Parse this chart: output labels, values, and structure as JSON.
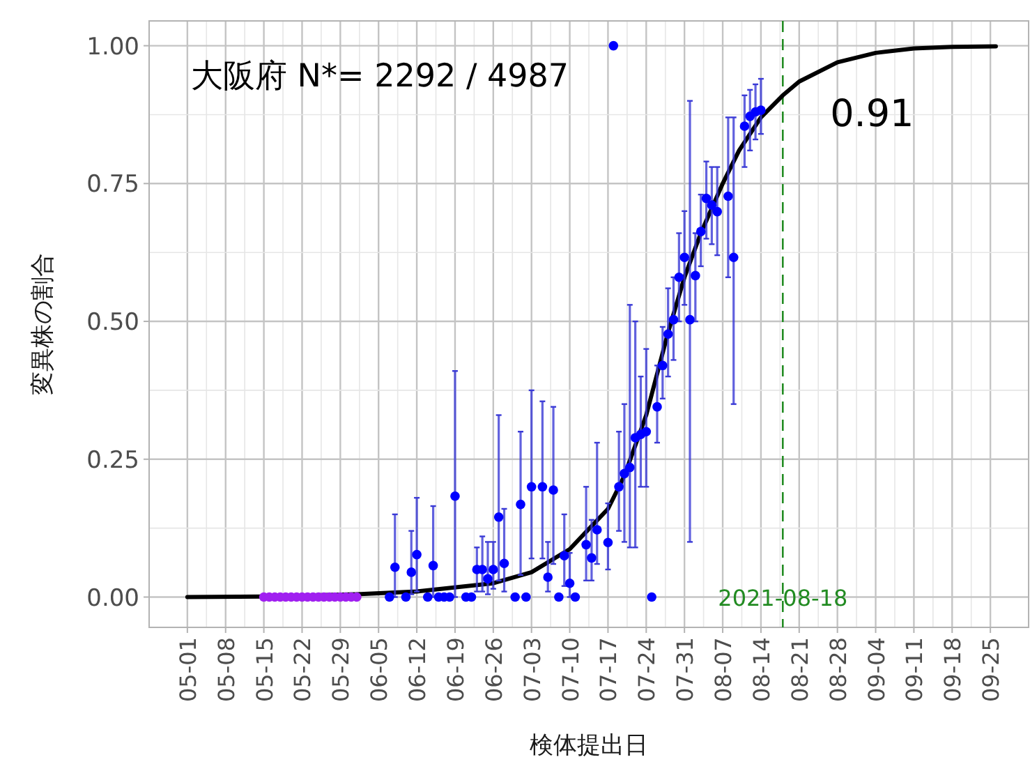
{
  "chart_data": {
    "type": "scatter",
    "xlabel": "検体提出日",
    "ylabel": "変異株の割合",
    "xlim": [
      "2021-04-24",
      "2021-10-02"
    ],
    "ylim": [
      -0.055,
      1.045
    ],
    "xticks": [
      {
        "value": "2021-05-01",
        "label": "05-01"
      },
      {
        "value": "2021-05-08",
        "label": "05-08"
      },
      {
        "value": "2021-05-15",
        "label": "05-15"
      },
      {
        "value": "2021-05-22",
        "label": "05-22"
      },
      {
        "value": "2021-05-29",
        "label": "05-29"
      },
      {
        "value": "2021-06-05",
        "label": "06-05"
      },
      {
        "value": "2021-06-12",
        "label": "06-12"
      },
      {
        "value": "2021-06-19",
        "label": "06-19"
      },
      {
        "value": "2021-06-26",
        "label": "06-26"
      },
      {
        "value": "2021-07-03",
        "label": "07-03"
      },
      {
        "value": "2021-07-10",
        "label": "07-10"
      },
      {
        "value": "2021-07-17",
        "label": "07-17"
      },
      {
        "value": "2021-07-24",
        "label": "07-24"
      },
      {
        "value": "2021-07-31",
        "label": "07-31"
      },
      {
        "value": "2021-08-07",
        "label": "08-07"
      },
      {
        "value": "2021-08-14",
        "label": "08-14"
      },
      {
        "value": "2021-08-21",
        "label": "08-21"
      },
      {
        "value": "2021-08-28",
        "label": "08-28"
      },
      {
        "value": "2021-09-04",
        "label": "09-04"
      },
      {
        "value": "2021-09-11",
        "label": "09-11"
      },
      {
        "value": "2021-09-18",
        "label": "09-18"
      },
      {
        "value": "2021-09-25",
        "label": "09-25"
      }
    ],
    "yticks": [
      {
        "value": 0,
        "label": "0.00"
      },
      {
        "value": 0.25,
        "label": "0.25"
      },
      {
        "value": 0.5,
        "label": "0.50"
      },
      {
        "value": 0.75,
        "label": "0.75"
      },
      {
        "value": 1,
        "label": "1.00"
      }
    ],
    "grid": true,
    "series": [
      {
        "type": "line",
        "color": "#000000",
        "line_style": "solid",
        "x": [
          "2021-05-01",
          "2021-05-15",
          "2021-06-01",
          "2021-06-12",
          "2021-06-26",
          "2021-07-03",
          "2021-07-10",
          "2021-07-17",
          "2021-07-20",
          "2021-07-24",
          "2021-07-28",
          "2021-07-31",
          "2021-08-03",
          "2021-08-07",
          "2021-08-10",
          "2021-08-14",
          "2021-08-18",
          "2021-08-21",
          "2021-08-28",
          "2021-09-04",
          "2021-09-11",
          "2021-09-18",
          "2021-09-26"
        ],
        "values": [
          0,
          0.001,
          0.005,
          0.01,
          0.025,
          0.045,
          0.087,
          0.16,
          0.22,
          0.33,
          0.48,
          0.58,
          0.66,
          0.75,
          0.81,
          0.87,
          0.91,
          0.935,
          0.97,
          0.987,
          0.995,
          0.998,
          0.999
        ]
      },
      {
        "marker": "circle",
        "color": "#a020f0",
        "x": [
          "2021-05-15",
          "2021-05-16",
          "2021-05-17",
          "2021-05-18",
          "2021-05-19",
          "2021-05-20",
          "2021-05-21",
          "2021-05-22",
          "2021-05-23",
          "2021-05-24",
          "2021-05-25",
          "2021-05-26",
          "2021-05-27",
          "2021-05-28",
          "2021-05-29",
          "2021-05-30",
          "2021-05-31",
          "2021-06-01"
        ],
        "values": [
          0,
          0,
          0,
          0,
          0,
          0,
          0,
          0,
          0,
          0,
          0,
          0,
          0,
          0,
          0,
          0,
          0,
          0
        ]
      },
      {
        "marker": "circle",
        "color": "#0000ff",
        "x": [
          "2021-06-07",
          "2021-06-08",
          "2021-06-10",
          "2021-06-11",
          "2021-06-12",
          "2021-06-14",
          "2021-06-15",
          "2021-06-16",
          "2021-06-17",
          "2021-06-18",
          "2021-06-19",
          "2021-06-21",
          "2021-06-22",
          "2021-06-23",
          "2021-06-24",
          "2021-06-25",
          "2021-06-26",
          "2021-06-27",
          "2021-06-28",
          "2021-06-30",
          "2021-07-01",
          "2021-07-02",
          "2021-07-03",
          "2021-07-05",
          "2021-07-06",
          "2021-07-07",
          "2021-07-08",
          "2021-07-09",
          "2021-07-10",
          "2021-07-11",
          "2021-07-13",
          "2021-07-14",
          "2021-07-15",
          "2021-07-17",
          "2021-07-18",
          "2021-07-19",
          "2021-07-20",
          "2021-07-21",
          "2021-07-22",
          "2021-07-23",
          "2021-07-24",
          "2021-07-25",
          "2021-07-26",
          "2021-07-27",
          "2021-07-28",
          "2021-07-29",
          "2021-07-30",
          "2021-07-31",
          "2021-08-01",
          "2021-08-02",
          "2021-08-03",
          "2021-08-04",
          "2021-08-05",
          "2021-08-06",
          "2021-08-08",
          "2021-08-09",
          "2021-08-11",
          "2021-08-12",
          "2021-08-13",
          "2021-08-14"
        ],
        "values": [
          0,
          0.054,
          0,
          0.045,
          0.077,
          0,
          0.057,
          0,
          0,
          0,
          0.183,
          0,
          0,
          0.05,
          0.05,
          0.033,
          0.05,
          0.145,
          0.061,
          0,
          0.168,
          0,
          0.2,
          0.2,
          0.036,
          0.194,
          0,
          0.075,
          0.025,
          0,
          0.095,
          0.071,
          0.122,
          0.099,
          1,
          0.2,
          0.224,
          0.235,
          0.289,
          0.295,
          0.3,
          0,
          0.345,
          0.42,
          0.477,
          0.503,
          0.58,
          0.616,
          0.503,
          0.583,
          0.663,
          0.723,
          0.711,
          0.699,
          0.727,
          0.616,
          0.854,
          0.872,
          0.88,
          0.883
        ],
        "errors": [
          null,
          [
            0,
            0.15
          ],
          null,
          [
            0.005,
            0.12
          ],
          [
            0.01,
            0.18
          ],
          null,
          [
            0,
            0.165
          ],
          null,
          null,
          null,
          [
            0,
            0.41
          ],
          null,
          null,
          [
            0.01,
            0.09
          ],
          [
            0.01,
            0.11
          ],
          [
            0.005,
            0.1
          ],
          [
            0.015,
            0.1
          ],
          [
            0.03,
            0.33
          ],
          [
            0.01,
            0.16
          ],
          null,
          [
            0.04,
            0.3
          ],
          null,
          [
            0.07,
            0.375
          ],
          [
            0.07,
            0.355
          ],
          [
            0.01,
            0.1
          ],
          [
            0.06,
            0.345
          ],
          null,
          [
            0.02,
            0.15
          ],
          [
            0,
            0.08
          ],
          null,
          [
            0.03,
            0.2
          ],
          [
            0.03,
            0.14
          ],
          [
            0.06,
            0.28
          ],
          [
            0.05,
            0.17
          ],
          null,
          [
            0.12,
            0.3
          ],
          [
            0.1,
            0.35
          ],
          [
            0.09,
            0.53
          ],
          [
            0.09,
            0.5
          ],
          [
            0.2,
            0.4
          ],
          [
            0.2,
            0.45
          ],
          null,
          [
            0.28,
            0.42
          ],
          [
            0.36,
            0.49
          ],
          [
            0.4,
            0.56
          ],
          [
            0.43,
            0.58
          ],
          [
            0.5,
            0.66
          ],
          [
            0.53,
            0.7
          ],
          [
            0.1,
            0.9
          ],
          [
            0.5,
            0.66
          ],
          [
            0.6,
            0.73
          ],
          [
            0.65,
            0.79
          ],
          [
            0.64,
            0.78
          ],
          [
            0.62,
            0.78
          ],
          [
            0.58,
            0.87
          ],
          [
            0.35,
            0.87
          ],
          [
            0.78,
            0.91
          ],
          [
            0.81,
            0.92
          ],
          [
            0.83,
            0.93
          ],
          [
            0.84,
            0.94
          ]
        ]
      }
    ],
    "ref_lines": [
      {
        "axis": "x",
        "value": "2021-08-18",
        "label": "2021-08-18",
        "color": "#228b22",
        "line_style": "dashed"
      }
    ],
    "annotations": [
      "大阪府 N*= 2292 / 4987",
      {
        "text": "0.91",
        "x": "2021-08-18",
        "y": 0.91
      }
    ]
  }
}
